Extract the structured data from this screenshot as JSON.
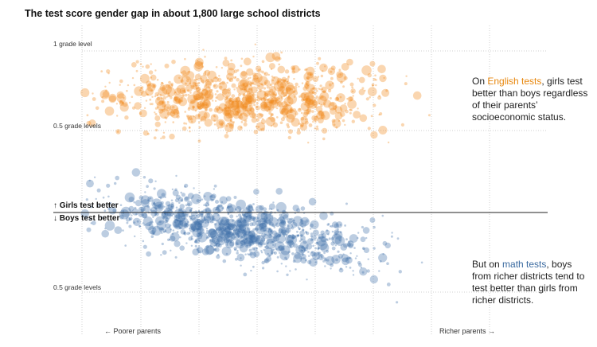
{
  "chart_data": {
    "type": "scatter",
    "title": "The test score gender gap in about 1,800 large school districts",
    "y_tick_labels": [
      "1 grade level",
      "0.5 grade levels",
      "0.5 grade levels"
    ],
    "zero_label_up": "↑ Girls test better",
    "zero_label_down": "↓ Boys test better",
    "x_label_left": "← Poorer parents",
    "x_label_right": "Richer parents →",
    "grid": true,
    "legend": "none",
    "ylim": [
      -0.5,
      1.0
    ],
    "series": [
      {
        "subject": "English",
        "color": "#f28a1c",
        "mean_gap": 0.72
      },
      {
        "subject": "math",
        "color": "#3f6fa8",
        "mean_gap_poor": 0.05,
        "mean_gap_rich": -0.3
      }
    ],
    "annotations": {
      "english": {
        "pre": "On ",
        "highlight": "English tests",
        "post": ", girls test better than boys regardless of their parents’ socioeconomic status."
      },
      "math": {
        "pre": "But on ",
        "highlight": "math tests",
        "post": ", boys from richer districts tend to test better than girls from richer districts."
      }
    }
  }
}
